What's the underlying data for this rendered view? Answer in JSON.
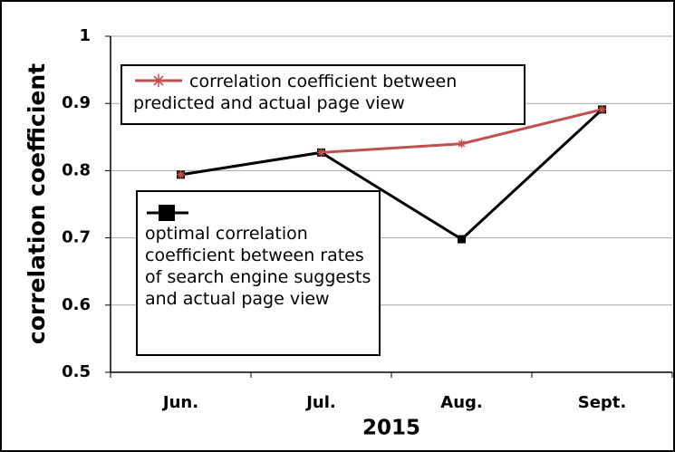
{
  "chart_data": {
    "type": "line",
    "categories": [
      "Jun.",
      "Jul.",
      "Aug.",
      "Sept."
    ],
    "xlabel": "2015",
    "ylabel": "correlation coefficient",
    "ylim": [
      0.5,
      1
    ],
    "yticks": [
      0.5,
      0.6,
      0.7,
      0.8,
      0.9,
      1
    ],
    "grid": true,
    "series": [
      {
        "name": "correlation coefficient between predicted and actual page view",
        "color": "#c0504d",
        "marker": "star",
        "values": [
          0.794,
          0.827,
          0.84,
          0.891
        ]
      },
      {
        "name": "optimal correlation coefficient between rates of search engine suggests and actual page view",
        "color": "#000000",
        "marker": "square",
        "values": [
          0.794,
          0.827,
          0.698,
          0.891
        ]
      }
    ]
  }
}
